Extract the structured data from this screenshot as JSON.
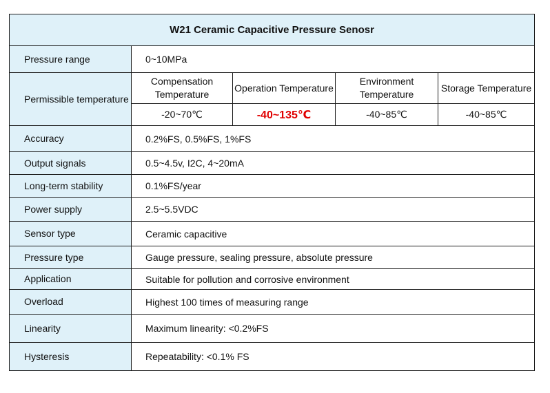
{
  "title": "W21 Ceramic Capacitive Pressure Senosr",
  "colors": {
    "header_background": "#dff1f9",
    "highlight_text": "#e00000",
    "border": "#1a1a1a"
  },
  "rows": {
    "pressure_range": {
      "label": "Pressure range",
      "value": "0~10MPa"
    },
    "permissible_temperature": {
      "label": "Permissible temperature",
      "columns": [
        {
          "heading": "Compensation Temperature",
          "value": "-20~70℃"
        },
        {
          "heading": "Operation Temperature",
          "value": "-40~135℃"
        },
        {
          "heading": "Environment Temperature",
          "value": "-40~85℃"
        },
        {
          "heading": "Storage Temperature",
          "value": "-40~85℃"
        }
      ]
    },
    "accuracy": {
      "label": "Accuracy",
      "value": "0.2%FS, 0.5%FS, 1%FS"
    },
    "output_signals": {
      "label": "Output signals",
      "value": "0.5~4.5v, I2C, 4~20mA"
    },
    "long_term_stability": {
      "label": "Long-term stability",
      "value": "0.1%FS/year"
    },
    "power_supply": {
      "label": "Power supply",
      "value": "2.5~5.5VDC"
    },
    "sensor_type": {
      "label": "Sensor type",
      "value": "Ceramic capacitive"
    },
    "pressure_type": {
      "label": "Pressure type",
      "value": "Gauge pressure, sealing pressure, absolute pressure"
    },
    "application": {
      "label": "Application",
      "value": "Suitable for pollution and corrosive environment"
    },
    "overload": {
      "label": "Overload",
      "value": "Highest 100 times of measuring range"
    },
    "linearity": {
      "label": "Linearity",
      "value": "Maximum linearity: <0.2%FS"
    },
    "hysteresis": {
      "label": "Hysteresis",
      "value": "Repeatability: <0.1% FS"
    }
  }
}
